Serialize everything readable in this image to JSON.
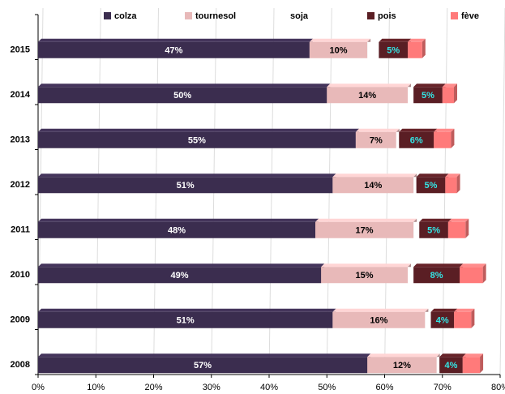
{
  "chart_data": {
    "type": "stacked-bar-horizontal",
    "categories": [
      "2015",
      "2014",
      "2013",
      "2012",
      "2011",
      "2010",
      "2009",
      "2008"
    ],
    "series": [
      {
        "name": "colza",
        "color": "#3b2d4f",
        "label_color": "#ffffff",
        "values": [
          47,
          50,
          55,
          51,
          48,
          49,
          51,
          57
        ],
        "value_labels": [
          "47%",
          "50%",
          "55%",
          "51%",
          "48%",
          "49%",
          "51%",
          "57%"
        ]
      },
      {
        "name": "tournesol",
        "color": "#e8b9b9",
        "label_color": "#000000",
        "values": [
          10,
          14,
          7,
          14,
          17,
          15,
          16,
          12
        ],
        "value_labels": [
          "10%",
          "14%",
          "7%",
          "14%",
          "17%",
          "15%",
          "16%",
          "12%"
        ]
      },
      {
        "name": "soja",
        "color": "#ffffff",
        "values": [
          2,
          1,
          0.5,
          0.5,
          1,
          1,
          1,
          0.5
        ]
      },
      {
        "name": "pois",
        "color": "#5a1e24",
        "label_color": "#33e6e6",
        "values": [
          5,
          5,
          6,
          5,
          5,
          8,
          4,
          4
        ],
        "value_labels": [
          "5%",
          "5%",
          "6%",
          "5%",
          "5%",
          "8%",
          "4%",
          "4%"
        ]
      },
      {
        "name": "fève",
        "color": "#ff7a7a",
        "values": [
          2.5,
          2,
          3,
          2,
          3,
          4,
          3,
          3
        ]
      }
    ],
    "xlim": [
      0,
      80
    ],
    "xticks": [
      {
        "value": 0,
        "label": "0%"
      },
      {
        "value": 10,
        "label": "10%"
      },
      {
        "value": 20,
        "label": "20%"
      },
      {
        "value": 30,
        "label": "30%"
      },
      {
        "value": 40,
        "label": "40%"
      },
      {
        "value": 50,
        "label": "50%"
      },
      {
        "value": 60,
        "label": "60%"
      },
      {
        "value": 70,
        "label": "70%"
      },
      {
        "value": 80,
        "label": "80%"
      }
    ],
    "grid": true,
    "legend": "top"
  }
}
